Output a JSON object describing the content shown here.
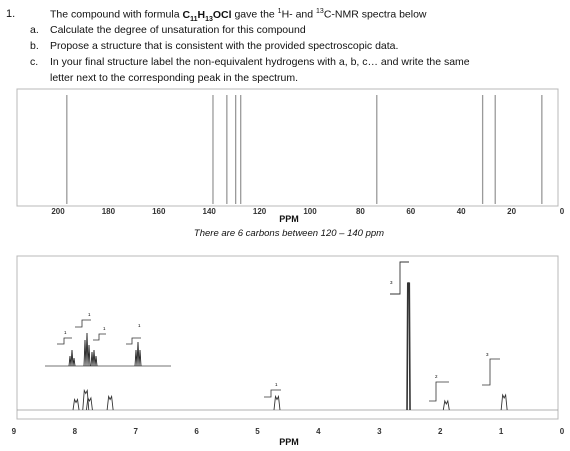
{
  "question": {
    "number": "1.",
    "stem_prefix": "The compound with formula ",
    "formula_parts": [
      "C",
      "11",
      "H",
      "13",
      "OCl"
    ],
    "stem_mid": " gave the ",
    "sup1": "1",
    "stem_h": "H- and ",
    "sup13": "13",
    "stem_suffix": "C-NMR spectra below",
    "items": [
      {
        "letter": "a.",
        "text": "Calculate the degree of unsaturation for this compound"
      },
      {
        "letter": "b.",
        "text": "Propose a structure that is consistent with the provided spectroscopic data."
      },
      {
        "letter": "c.",
        "text_lines": [
          "In your final structure label the non-equivalent hydrogens with a, b, c… and write the same",
          "letter next to the corresponding peak in the spectrum."
        ]
      }
    ]
  },
  "chart_data": [
    {
      "type": "line",
      "name": "13C NMR",
      "xlabel": "PPM",
      "x_ticks": [
        200,
        180,
        160,
        140,
        120,
        100,
        80,
        60,
        40,
        20,
        0
      ],
      "xlim": [
        205,
        0
      ],
      "peaks_ppm": [
        196.5,
        138.5,
        133.0,
        129.5,
        127.5,
        73.5,
        31.5,
        26.5,
        8.0
      ],
      "annotation": "There are 6 carbons between 120 – 140 ppm"
    },
    {
      "type": "line",
      "name": "1H NMR",
      "xlabel": "PPM",
      "x_ticks": [
        9,
        8,
        7,
        6,
        5,
        4,
        3,
        2,
        1,
        0
      ],
      "xlim": [
        9,
        0
      ],
      "integration_labels": [
        "1",
        "1",
        "1",
        "1",
        "1",
        "3",
        "2",
        "3"
      ],
      "peaks": [
        {
          "ppm": 7.98,
          "height": 0.07
        },
        {
          "ppm": 7.82,
          "height": 0.13
        },
        {
          "ppm": 7.76,
          "height": 0.08
        },
        {
          "ppm": 7.42,
          "height": 0.09
        },
        {
          "ppm": 4.68,
          "height": 0.09
        },
        {
          "ppm": 2.52,
          "height": 0.85
        },
        {
          "ppm": 1.9,
          "height": 0.06
        },
        {
          "ppm": 0.95,
          "height": 0.1
        }
      ]
    }
  ]
}
